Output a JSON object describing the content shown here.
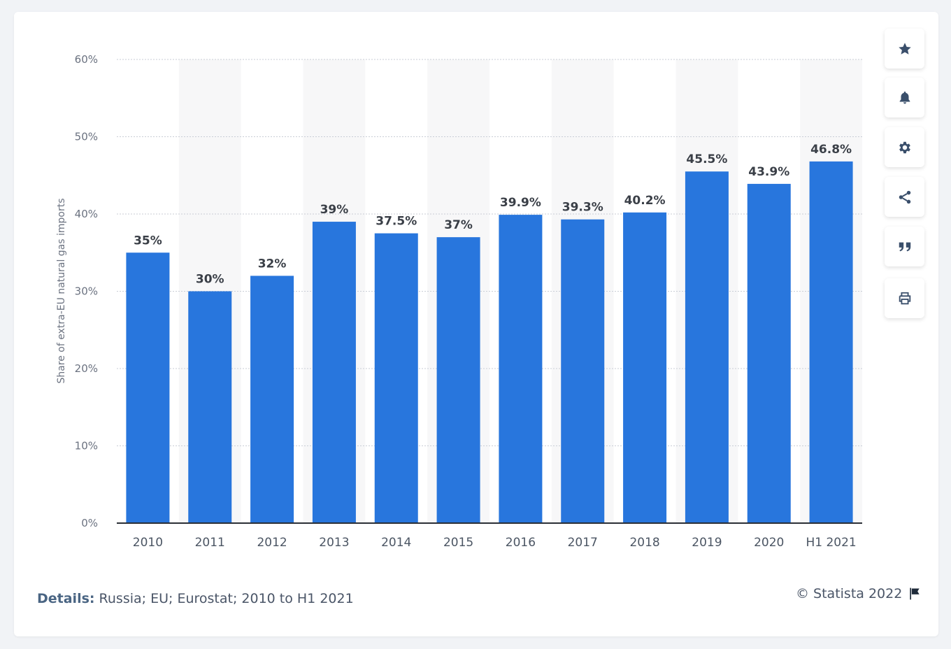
{
  "chart_data": {
    "type": "bar",
    "categories": [
      "2010",
      "2011",
      "2012",
      "2013",
      "2014",
      "2015",
      "2016",
      "2017",
      "2018",
      "2019",
      "2020",
      "H1 2021"
    ],
    "values": [
      35,
      30,
      32,
      39,
      37.5,
      37,
      39.9,
      39.3,
      40.2,
      45.5,
      43.9,
      46.8
    ],
    "value_labels": [
      "35%",
      "30%",
      "32%",
      "39%",
      "37.5%",
      "37%",
      "39.9%",
      "39.3%",
      "40.2%",
      "45.5%",
      "43.9%",
      "46.8%"
    ],
    "ylabel": "Share of extra-EU natural gas imports",
    "ylim": [
      0,
      60
    ],
    "y_ticks": [
      0,
      10,
      20,
      30,
      40,
      50,
      60
    ],
    "y_tick_labels": [
      "0%",
      "10%",
      "20%",
      "30%",
      "40%",
      "50%",
      "60%"
    ],
    "grid": true,
    "bar_color": "#2876dd",
    "band_color": "#f7f7f8"
  },
  "footer": {
    "details_label": "Details:",
    "details_text": " Russia; EU; Eurostat; 2010 to H1 2021",
    "copyright": "© Statista 2022"
  },
  "toolbar": {
    "icons": [
      "star-icon",
      "bell-icon",
      "gear-icon",
      "share-icon",
      "quote-icon",
      "print-icon"
    ]
  }
}
